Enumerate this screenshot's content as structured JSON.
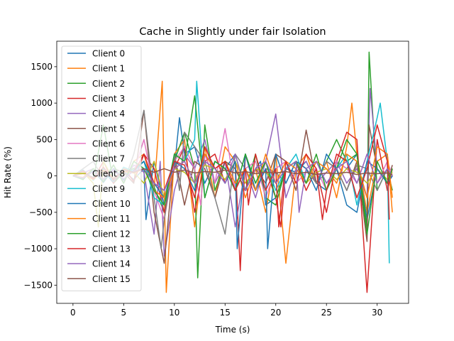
{
  "chart_data": {
    "type": "line",
    "title": "Cache in Slightly under fair Isolation",
    "xlabel": "Time (s)",
    "ylabel": "Hit Rate (%)",
    "xlim": [
      -1.6,
      33.1
    ],
    "ylim": [
      -1750,
      1850
    ],
    "xticks": [
      0,
      5,
      10,
      15,
      20,
      25,
      30
    ],
    "yticks": [
      -1500,
      -1000,
      -500,
      0,
      500,
      1000,
      1500
    ],
    "grid": false,
    "legend_position": "upper-left",
    "series": [
      {
        "name": "Client 0",
        "color": "#1f77b4",
        "x": [
          0,
          1,
          2,
          3,
          4,
          5,
          6,
          7,
          7.2,
          8,
          9,
          10,
          10.5,
          11,
          12,
          13,
          14,
          15,
          16,
          17,
          18,
          18.5,
          19,
          20,
          21,
          22,
          23,
          24,
          25,
          26,
          27,
          28,
          29,
          30,
          31,
          31.5
        ],
        "y": [
          0,
          50,
          -30,
          80,
          -100,
          60,
          -50,
          100,
          -600,
          200,
          -400,
          100,
          800,
          300,
          400,
          -100,
          200,
          100,
          300,
          -200,
          100,
          200,
          -400,
          -300,
          100,
          50,
          200,
          -100,
          -200,
          200,
          100,
          300,
          -600,
          100,
          -100,
          0
        ]
      },
      {
        "name": "Client 1",
        "color": "#ff7f0e",
        "x": [
          0,
          1,
          2,
          3,
          4,
          5,
          6,
          7,
          8,
          8.8,
          9.2,
          10,
          11,
          12,
          13,
          14,
          15,
          16,
          17,
          18,
          19,
          20,
          21,
          22,
          23,
          24,
          25,
          26,
          27,
          27.5,
          28,
          29,
          30,
          31,
          31.5
        ],
        "y": [
          0,
          -20,
          100,
          -50,
          150,
          -100,
          200,
          300,
          -200,
          1300,
          -1600,
          300,
          500,
          -700,
          400,
          -300,
          400,
          200,
          -300,
          100,
          -500,
          300,
          -1200,
          100,
          300,
          -100,
          200,
          -300,
          400,
          1000,
          300,
          -500,
          200,
          300,
          -500
        ]
      },
      {
        "name": "Client 2",
        "color": "#2ca02c",
        "x": [
          0,
          1,
          2,
          3,
          4,
          5,
          6,
          7,
          8,
          9,
          10,
          11,
          12,
          12.3,
          13,
          14,
          15,
          16,
          17,
          18,
          19,
          20,
          21,
          22,
          23,
          24,
          25,
          26,
          27,
          28,
          29,
          29.2,
          30,
          31,
          31.5
        ],
        "y": [
          0,
          30,
          -50,
          700,
          -100,
          50,
          100,
          200,
          -150,
          -500,
          200,
          600,
          100,
          -1400,
          700,
          -200,
          200,
          100,
          -200,
          300,
          -300,
          -400,
          100,
          200,
          100,
          -100,
          200,
          500,
          200,
          300,
          -700,
          1700,
          -200,
          100,
          -200
        ]
      },
      {
        "name": "Client 3",
        "color": "#d62728",
        "x": [
          0,
          1,
          2,
          3,
          4,
          5,
          6,
          7,
          8,
          9,
          10,
          11,
          12,
          13,
          14,
          15,
          16,
          16.5,
          17,
          18,
          19,
          20,
          20.5,
          21,
          22,
          23,
          24,
          25,
          26,
          27,
          28,
          29,
          30,
          31,
          31.5
        ],
        "y": [
          0,
          80,
          -50,
          200,
          -100,
          120,
          -80,
          300,
          100,
          -500,
          100,
          400,
          -500,
          200,
          300,
          -100,
          200,
          -1300,
          300,
          -200,
          100,
          -300,
          -700,
          100,
          200,
          -200,
          100,
          -500,
          200,
          600,
          500,
          -1600,
          500,
          -200,
          100
        ]
      },
      {
        "name": "Client 4",
        "color": "#9467bd",
        "x": [
          0,
          1,
          2,
          3,
          4,
          5,
          6,
          7,
          8,
          8.6,
          9,
          10,
          11,
          12,
          13,
          14,
          15,
          16,
          17,
          18,
          19,
          20,
          21,
          22,
          23,
          24,
          25,
          26,
          27,
          28,
          29,
          29.3,
          30,
          31,
          31.5
        ],
        "y": [
          0,
          40,
          100,
          -50,
          80,
          -60,
          150,
          50,
          -800,
          200,
          -1100,
          -200,
          300,
          100,
          500,
          -100,
          200,
          -700,
          100,
          -300,
          200,
          850,
          -300,
          100,
          200,
          -100,
          50,
          200,
          -100,
          100,
          -300,
          1200,
          100,
          -100,
          0
        ]
      },
      {
        "name": "Client 5",
        "color": "#8c564b",
        "x": [
          0,
          1,
          2,
          3,
          4,
          5,
          6,
          7,
          8,
          9,
          10,
          11,
          12,
          13,
          14,
          15,
          16,
          17,
          18,
          19,
          20,
          21,
          22,
          23,
          24,
          25,
          26,
          27,
          28,
          29,
          29.2,
          30,
          31,
          31.5
        ],
        "y": [
          0,
          -30,
          60,
          -80,
          100,
          50,
          -100,
          900,
          -500,
          -1200,
          300,
          -400,
          200,
          100,
          -300,
          200,
          100,
          -200,
          100,
          -100,
          300,
          200,
          -200,
          630,
          -100,
          200,
          100,
          -200,
          200,
          -900,
          700,
          100,
          -100,
          150
        ]
      },
      {
        "name": "Client 6",
        "color": "#e377c2",
        "x": [
          0,
          1,
          2,
          3,
          4,
          5,
          6,
          7,
          8,
          9,
          10,
          11,
          12,
          12.6,
          13,
          14,
          15,
          16,
          17,
          18,
          19,
          20,
          21,
          22,
          23,
          24,
          25,
          26,
          27,
          28,
          29,
          30,
          31,
          31.5
        ],
        "y": [
          0,
          60,
          -40,
          90,
          -70,
          110,
          50,
          500,
          -200,
          -600,
          200,
          400,
          100,
          -400,
          300,
          -100,
          650,
          -200,
          100,
          200,
          -300,
          100,
          200,
          -100,
          50,
          100,
          -200,
          200,
          100,
          -100,
          300,
          -100,
          200,
          0
        ]
      },
      {
        "name": "Client 7",
        "color": "#7f7f7f",
        "x": [
          0,
          1,
          2,
          3,
          4,
          5,
          6,
          7,
          8,
          8.7,
          9,
          10,
          10.5,
          11,
          12,
          13,
          14,
          15,
          16,
          17,
          18,
          19,
          20,
          21,
          22,
          23,
          24,
          25,
          26,
          27,
          28,
          29,
          30,
          31,
          31.5
        ],
        "y": [
          0,
          100,
          200,
          -50,
          150,
          -100,
          300,
          900,
          -300,
          -1000,
          -600,
          300,
          -200,
          600,
          400,
          200,
          -300,
          -800,
          300,
          100,
          -200,
          100,
          50,
          -100,
          200,
          100,
          -100,
          200,
          100,
          -200,
          150,
          100,
          -200,
          100,
          0
        ]
      },
      {
        "name": "Client 8",
        "color": "#bcbd22",
        "x": [
          0,
          1,
          2,
          2.5,
          3,
          4,
          5,
          6,
          7,
          8,
          9,
          10,
          11,
          12,
          13,
          14,
          15,
          16,
          17,
          18,
          19,
          20,
          21,
          22,
          23,
          24,
          25,
          26,
          27,
          28,
          29,
          30,
          31,
          31.5
        ],
        "y": [
          0,
          50,
          -100,
          -700,
          200,
          -50,
          100,
          50,
          -100,
          200,
          -300,
          100,
          50,
          -100,
          150,
          100,
          -50,
          200,
          -100,
          100,
          50,
          -100,
          100,
          200,
          -100,
          50,
          100,
          -50,
          100,
          50,
          -100,
          100,
          -50,
          50
        ]
      },
      {
        "name": "Client 9",
        "color": "#17becf",
        "x": [
          0,
          1,
          2,
          3,
          4,
          5,
          6,
          7,
          8,
          9,
          10,
          11,
          12,
          12.2,
          13,
          14,
          15,
          16,
          17,
          18,
          19,
          20,
          21,
          22,
          23,
          24,
          25,
          26,
          27,
          28,
          29,
          30,
          30.3,
          31,
          31.2
        ],
        "y": [
          0,
          80,
          -60,
          100,
          -80,
          120,
          60,
          200,
          -300,
          -400,
          300,
          200,
          500,
          1300,
          -300,
          200,
          100,
          -200,
          300,
          -100,
          200,
          -200,
          100,
          300,
          -100,
          200,
          -100,
          100,
          300,
          -400,
          200,
          800,
          1000,
          200,
          -1200
        ]
      },
      {
        "name": "Client 10",
        "color": "#1f77b4",
        "x": [
          0,
          1,
          2,
          3,
          4,
          5,
          6,
          7,
          8,
          9,
          10,
          11,
          12,
          13,
          14,
          15,
          16,
          16.2,
          17,
          18,
          19,
          19.2,
          20,
          21,
          22,
          23,
          24,
          25,
          26,
          27,
          28,
          29,
          30,
          31,
          31.5
        ],
        "y": [
          0,
          -40,
          70,
          -90,
          100,
          -50,
          80,
          200,
          -100,
          -300,
          200,
          100,
          -200,
          300,
          100,
          -100,
          200,
          -1000,
          300,
          -200,
          100,
          -1000,
          300,
          -100,
          200,
          100,
          -200,
          300,
          100,
          -400,
          -500,
          200,
          100,
          -100,
          0
        ]
      },
      {
        "name": "Client 11",
        "color": "#ff7f0e",
        "x": [
          0,
          1,
          2,
          3,
          4,
          5,
          6,
          7,
          8,
          9,
          10,
          11,
          12,
          13,
          14,
          15,
          16,
          17,
          18,
          19,
          20,
          21,
          22,
          23,
          24,
          25,
          26,
          27,
          28,
          29,
          30,
          31,
          31.5
        ],
        "y": [
          0,
          30,
          -50,
          80,
          -30,
          60,
          40,
          100,
          -200,
          -300,
          100,
          200,
          -100,
          300,
          100,
          200,
          -100,
          100,
          -200,
          300,
          -100,
          200,
          100,
          -100,
          200,
          100,
          -100,
          300,
          200,
          -300,
          400,
          300,
          -300
        ]
      },
      {
        "name": "Client 12",
        "color": "#2ca02c",
        "x": [
          0,
          1,
          2,
          3,
          4,
          5,
          6,
          7,
          8,
          9,
          10,
          11,
          12,
          13,
          14,
          15,
          16,
          17,
          18,
          19,
          20,
          21,
          22,
          23,
          24,
          25,
          26,
          27,
          28,
          29,
          30,
          31,
          31.5
        ],
        "y": [
          0,
          -50,
          100,
          -80,
          150,
          -100,
          200,
          100,
          -200,
          -400,
          300,
          200,
          1100,
          -300,
          200,
          100,
          -200,
          300,
          -100,
          200,
          -300,
          100,
          200,
          -100,
          300,
          -200,
          100,
          500,
          300,
          -800,
          200,
          -100,
          100
        ]
      },
      {
        "name": "Client 13",
        "color": "#d62728",
        "x": [
          0,
          1,
          2,
          3,
          4,
          5,
          6,
          7,
          8,
          9,
          10,
          11,
          12,
          13,
          14,
          15,
          16,
          17,
          17.3,
          18,
          19,
          20,
          20.3,
          21,
          22,
          23,
          24,
          24.6,
          25,
          26,
          27,
          28,
          29,
          30,
          31,
          31.2
        ],
        "y": [
          0,
          70,
          -40,
          120,
          -60,
          90,
          50,
          300,
          -100,
          -200,
          200,
          150,
          -300,
          400,
          100,
          200,
          -200,
          100,
          -400,
          300,
          -200,
          100,
          -700,
          200,
          -100,
          300,
          100,
          -600,
          -200,
          300,
          200,
          -300,
          100,
          700,
          200,
          -600
        ]
      },
      {
        "name": "Client 14",
        "color": "#9467bd",
        "x": [
          0,
          1,
          2,
          3,
          4,
          5,
          6,
          7,
          8,
          9,
          10,
          11,
          12,
          13,
          14,
          15,
          16,
          17,
          18,
          19,
          20,
          21,
          22,
          22.3,
          23,
          24,
          25,
          26,
          27,
          28,
          29,
          30,
          31,
          31.5
        ],
        "y": [
          0,
          -30,
          60,
          -50,
          90,
          -40,
          70,
          100,
          -100,
          -200,
          100,
          200,
          -100,
          200,
          100,
          -100,
          300,
          -200,
          100,
          200,
          -100,
          100,
          200,
          -500,
          100,
          200,
          -100,
          100,
          200,
          -100,
          300,
          -100,
          100,
          0
        ]
      },
      {
        "name": "Client 15",
        "color": "#8c564b",
        "x": [
          0,
          1,
          2,
          3,
          4,
          5,
          6,
          7,
          8,
          9,
          10,
          11,
          12,
          13,
          14,
          15,
          16,
          17,
          18,
          19,
          20,
          21,
          22,
          23,
          24,
          25,
          26,
          27,
          28,
          29,
          30,
          31,
          31.5
        ],
        "y": [
          0,
          40,
          -20,
          60,
          -40,
          80,
          50,
          100,
          50,
          100,
          50,
          80,
          40,
          60,
          50,
          80,
          40,
          60,
          30,
          50,
          40,
          60,
          30,
          50,
          20,
          40,
          30,
          50,
          20,
          40,
          30,
          40,
          20
        ]
      }
    ]
  }
}
